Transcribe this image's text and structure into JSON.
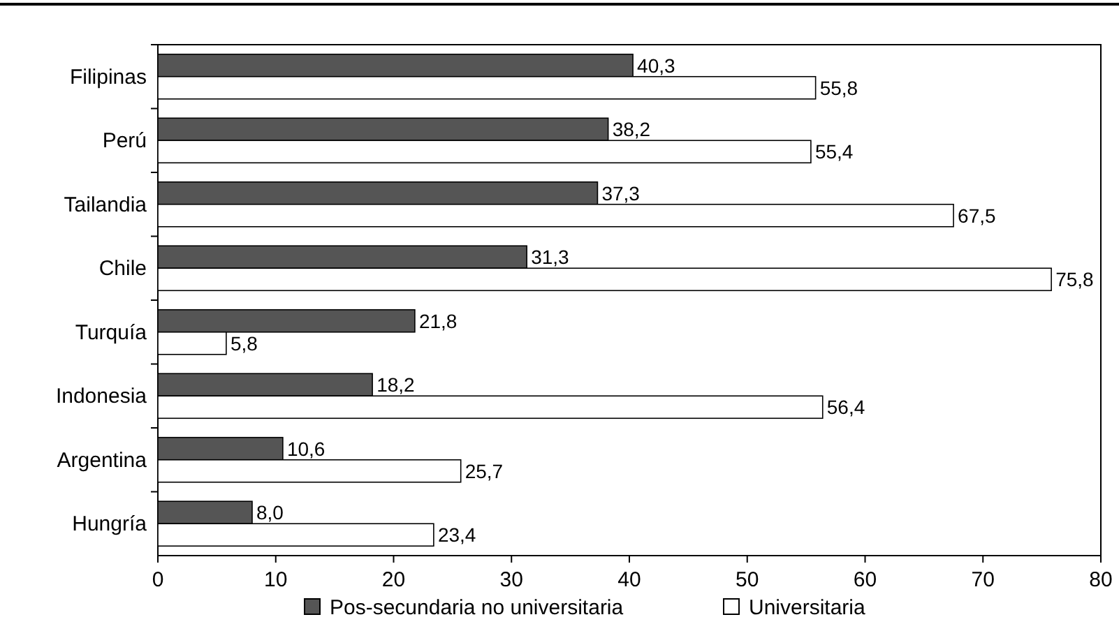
{
  "chart_data": {
    "type": "bar",
    "orientation": "horizontal",
    "categories": [
      "Filipinas",
      "Perú",
      "Tailandia",
      "Chile",
      "Turquía",
      "Indonesia",
      "Argentina",
      "Hungría"
    ],
    "series": [
      {
        "name": "Pos-secundaria no universitaria",
        "color": "#555555",
        "values": [
          40.3,
          38.2,
          37.3,
          31.3,
          21.8,
          18.2,
          10.6,
          8.0
        ],
        "value_labels": [
          "40,3",
          "38,2",
          "37,3",
          "31,3",
          "21,8",
          "18,2",
          "10,6",
          "8,0"
        ]
      },
      {
        "name": "Universitaria",
        "color": "#ffffff",
        "values": [
          55.8,
          55.4,
          67.5,
          75.8,
          5.8,
          56.4,
          25.7,
          23.4
        ],
        "value_labels": [
          "55,8",
          "55,4",
          "67,5",
          "75,8",
          "5,8",
          "56,4",
          "25,7",
          "23,4"
        ]
      }
    ],
    "xlim": [
      0,
      80
    ],
    "xticks": [
      0,
      10,
      20,
      30,
      40,
      50,
      60,
      70,
      80
    ],
    "grid": false,
    "legend": "bottom"
  }
}
